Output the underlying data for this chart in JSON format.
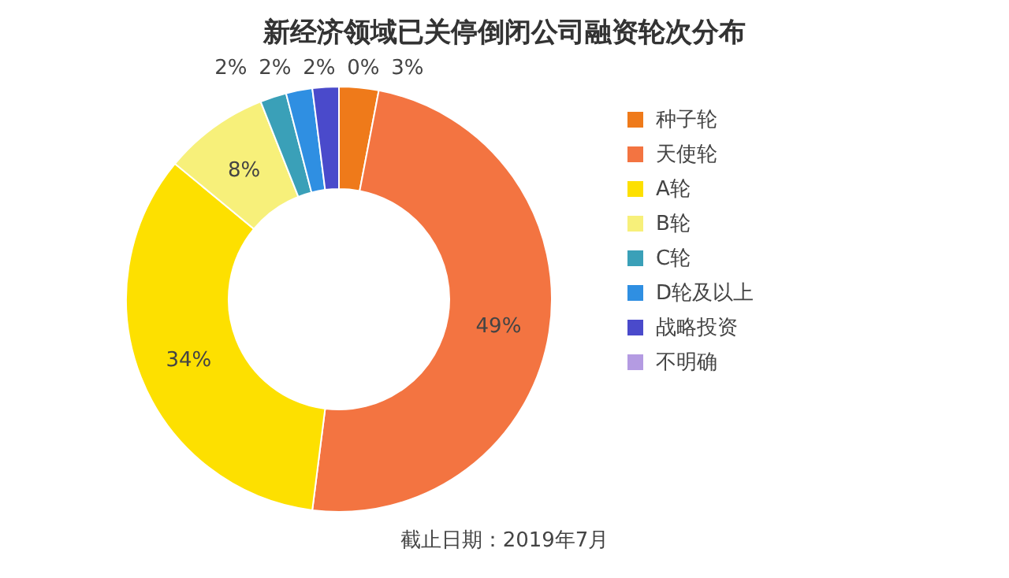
{
  "chart_data": {
    "type": "donut",
    "title": "新经济领域已关停倒闭公司融资轮次分布",
    "categories": [
      "种子轮",
      "天使轮",
      "A轮",
      "B轮",
      "C轮",
      "D轮及以上",
      "战略投资",
      "不明确"
    ],
    "values": [
      3,
      49,
      34,
      8,
      2,
      2,
      2,
      0
    ],
    "colors": [
      "#ef7a1a",
      "#f37441",
      "#fde000",
      "#f7f07a",
      "#3aa0b8",
      "#2f8fe2",
      "#4a4acb",
      "#b49be2"
    ],
    "value_labels": [
      "3%",
      "49%",
      "34%",
      "8%",
      "2%",
      "2%",
      "2%",
      "0%"
    ],
    "legend": "right",
    "annotations": [
      "截止日期：2019年7月"
    ]
  }
}
